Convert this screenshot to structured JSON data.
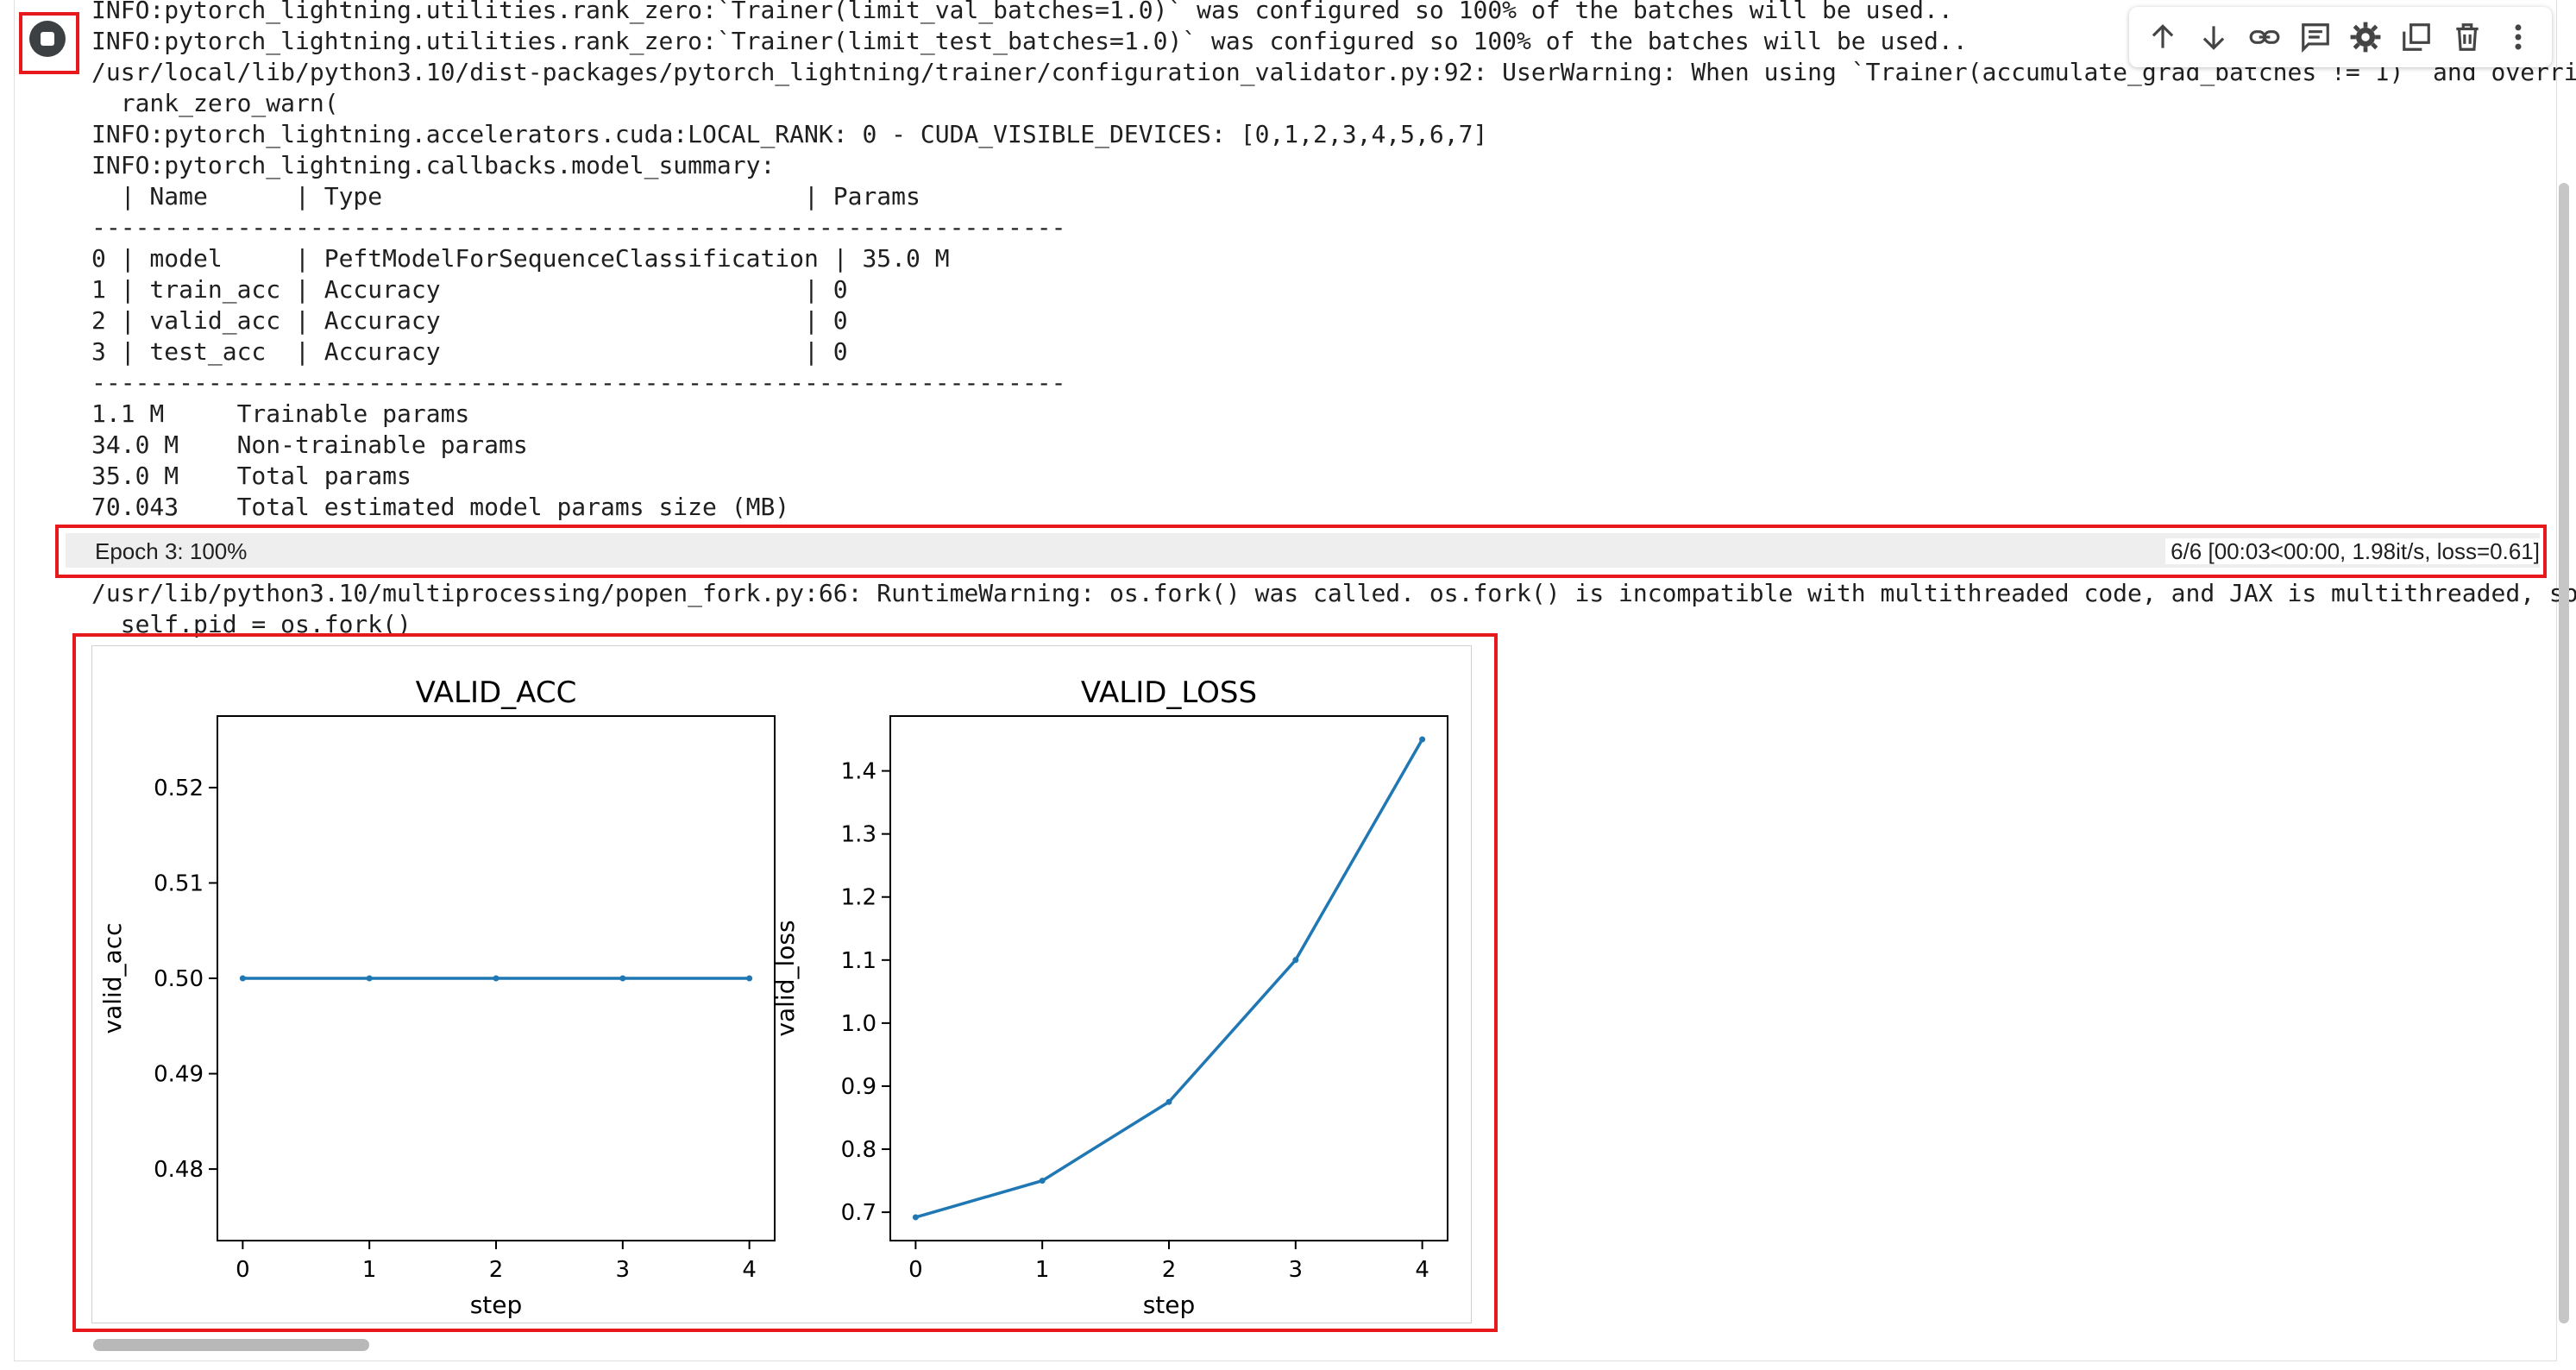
{
  "log_top": [
    "INFO:pytorch_lightning.utilities.rank_zero:`Trainer(limit_val_batches=1.0)` was configured so 100% of the batches will be used..",
    "INFO:pytorch_lightning.utilities.rank_zero:`Trainer(limit_test_batches=1.0)` was configured so 100% of the batches will be used..",
    "/usr/local/lib/python3.10/dist-packages/pytorch_lightning/trainer/configuration_validator.py:92: UserWarning: When using `Trainer(accumulate_grad_batches != 1)` and overriding",
    "  rank_zero_warn(",
    "INFO:pytorch_lightning.accelerators.cuda:LOCAL_RANK: 0 - CUDA_VISIBLE_DEVICES: [0,1,2,3,4,5,6,7]",
    "INFO:pytorch_lightning.callbacks.model_summary:",
    "  | Name      | Type                             | Params",
    "-------------------------------------------------------------------",
    "0 | model     | PeftModelForSequenceClassification | 35.0 M",
    "1 | train_acc | Accuracy                         | 0",
    "2 | valid_acc | Accuracy                         | 0",
    "3 | test_acc  | Accuracy                         | 0",
    "-------------------------------------------------------------------",
    "1.1 M     Trainable params",
    "34.0 M    Non-trainable params",
    "35.0 M    Total params",
    "70.043    Total estimated model params size (MB)"
  ],
  "progress": {
    "label": "Epoch 3: 100%",
    "fraction": 1.0,
    "stats": "6/6 [00:03<00:00,  1.98it/s, loss=0.61]"
  },
  "log_bottom": [
    "/usr/lib/python3.10/multiprocessing/popen_fork.py:66: RuntimeWarning: os.fork() was called. os.fork() is incompatible with multithreaded code, and JAX is multithreaded, so",
    "  self.pid = os.fork()"
  ],
  "toolbar": {
    "icons": [
      "arrow-up-icon",
      "arrow-down-icon",
      "link-icon",
      "comment-icon",
      "gear-icon",
      "mirror-cell-icon",
      "trash-icon",
      "more-vert-icon"
    ]
  },
  "colors": {
    "highlight": "#e8191c",
    "series": "#1f77b4",
    "run_button": "#3c4043"
  },
  "chart_data": [
    {
      "type": "line",
      "title": "VALID_ACC",
      "xlabel": "step",
      "ylabel": "valid_acc",
      "x": [
        0,
        1,
        2,
        3,
        4
      ],
      "series": [
        {
          "values": [
            0.5,
            0.5,
            0.5,
            0.5,
            0.5
          ]
        }
      ],
      "xlim": [
        -0.2,
        4.2
      ],
      "ylim": [
        0.4725,
        0.5275
      ],
      "yticks": [
        0.48,
        0.49,
        0.5,
        0.51,
        0.52
      ],
      "ytick_labels": [
        "0.48",
        "0.49",
        "0.50",
        "0.51",
        "0.52"
      ],
      "xticks": [
        0,
        1,
        2,
        3,
        4
      ],
      "grid": false
    },
    {
      "type": "line",
      "title": "VALID_LOSS",
      "xlabel": "step",
      "ylabel": "valid_loss",
      "x": [
        0,
        1,
        2,
        3,
        4
      ],
      "series": [
        {
          "values": [
            0.692,
            0.75,
            0.875,
            1.1,
            1.45
          ]
        }
      ],
      "xlim": [
        -0.2,
        4.2
      ],
      "ylim": [
        0.655,
        1.487
      ],
      "yticks": [
        0.7,
        0.8,
        0.9,
        1.0,
        1.1,
        1.2,
        1.3,
        1.4
      ],
      "ytick_labels": [
        "0.7",
        "0.8",
        "0.9",
        "1.0",
        "1.1",
        "1.2",
        "1.3",
        "1.4"
      ],
      "xticks": [
        0,
        1,
        2,
        3,
        4
      ],
      "grid": false
    }
  ]
}
